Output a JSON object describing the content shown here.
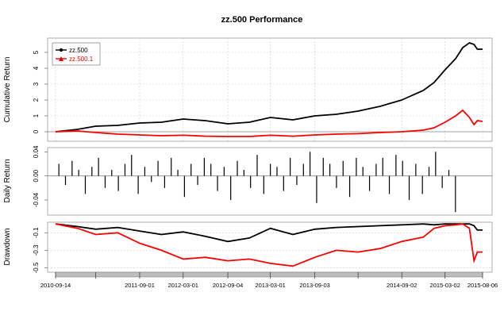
{
  "chart_data": {
    "type": "line",
    "title": "zz.500 Performance",
    "colors": {
      "zz.500": "#000000",
      "zz.500.1": "#ff0000",
      "grid": "#cfcfcf",
      "axis": "#555555",
      "bar": "#bdbdbd"
    },
    "x_axis": {
      "range": [
        "2010-09-14",
        "2015-08-06"
      ],
      "tick_labels": [
        "2010-09-14",
        "2011-09-01",
        "2012-03-01",
        "2012-09-04",
        "2013-03-01",
        "2013-09-03",
        "2014-09-02",
        "2015-03-02",
        "2015-08-06"
      ],
      "minor_ticks": [
        "2011-03-01",
        "2014-03-03"
      ]
    },
    "panels": [
      {
        "id": "cumulative",
        "ylabel": "Cumulative Return",
        "ylim": [
          -0.6,
          5.9
        ],
        "yticks": [
          "0",
          "1",
          "2",
          "3",
          "4",
          "5"
        ],
        "grid": true,
        "legend": {
          "position": "top-left",
          "entries": [
            "zz.500",
            "zz.500.1"
          ]
        },
        "series": [
          {
            "name": "zz.500",
            "marker": "circle",
            "x": [
              "2010-09-14",
              "2010-12-15",
              "2011-03-01",
              "2011-06-01",
              "2011-09-01",
              "2011-12-01",
              "2012-03-01",
              "2012-06-01",
              "2012-09-04",
              "2012-12-03",
              "2013-03-01",
              "2013-06-03",
              "2013-09-03",
              "2013-12-02",
              "2014-03-03",
              "2014-06-03",
              "2014-09-02",
              "2014-12-01",
              "2015-01-15",
              "2015-03-02",
              "2015-04-15",
              "2015-05-15",
              "2015-06-12",
              "2015-07-01",
              "2015-07-15",
              "2015-08-06"
            ],
            "y": [
              0.0,
              0.15,
              0.35,
              0.4,
              0.55,
              0.6,
              0.8,
              0.7,
              0.5,
              0.6,
              0.9,
              0.75,
              1.0,
              1.1,
              1.3,
              1.6,
              2.0,
              2.6,
              3.1,
              3.9,
              4.6,
              5.3,
              5.6,
              5.5,
              5.2,
              5.2
            ]
          },
          {
            "name": "zz.500.1",
            "marker": "triangle",
            "x": [
              "2010-09-14",
              "2010-12-15",
              "2011-03-01",
              "2011-06-01",
              "2011-09-01",
              "2011-12-01",
              "2012-03-01",
              "2012-06-01",
              "2012-09-04",
              "2012-12-03",
              "2013-03-01",
              "2013-06-03",
              "2013-09-03",
              "2013-12-02",
              "2014-03-03",
              "2014-06-03",
              "2014-09-02",
              "2014-12-01",
              "2015-01-15",
              "2015-03-02",
              "2015-04-15",
              "2015-05-15",
              "2015-06-12",
              "2015-07-01",
              "2015-07-15",
              "2015-08-06"
            ],
            "y": [
              0.0,
              0.05,
              -0.05,
              -0.15,
              -0.2,
              -0.25,
              -0.22,
              -0.28,
              -0.3,
              -0.3,
              -0.22,
              -0.28,
              -0.2,
              -0.15,
              -0.12,
              -0.05,
              0.0,
              0.1,
              0.25,
              0.6,
              1.0,
              1.35,
              0.9,
              0.45,
              0.7,
              0.65
            ]
          }
        ]
      },
      {
        "id": "daily",
        "ylabel": "Daily Return",
        "ylim": [
          -0.065,
          0.047
        ],
        "yticks": [
          "0.04",
          "0.00",
          "-0.04"
        ],
        "series_name": "zz.500",
        "values": [
          0.02,
          -0.015,
          0.025,
          0.01,
          -0.03,
          0.015,
          0.03,
          -0.02,
          0.01,
          -0.025,
          0.02,
          0.035,
          -0.03,
          0.015,
          -0.01,
          0.025,
          -0.02,
          0.03,
          0.01,
          -0.035,
          0.02,
          -0.015,
          0.03,
          0.02,
          -0.025,
          0.015,
          -0.04,
          0.025,
          0.01,
          -0.02,
          0.035,
          -0.03,
          0.02,
          0.015,
          -0.025,
          0.03,
          -0.015,
          0.02,
          0.04,
          -0.045,
          0.03,
          0.02,
          -0.02,
          0.025,
          -0.035,
          0.03,
          0.015,
          -0.025,
          0.02,
          0.03,
          -0.03,
          0.035,
          0.025,
          -0.04,
          0.02,
          -0.03,
          0.015,
          0.04,
          -0.02,
          0.01,
          -0.06
        ]
      },
      {
        "id": "drawdown",
        "ylabel": "Drawdown",
        "ylim": [
          -0.55,
          0.02
        ],
        "yticks": [
          "-0.1",
          "-0.3",
          "-0.5"
        ],
        "series": [
          {
            "name": "zz.500",
            "x": [
              "2010-09-14",
              "2010-12-15",
              "2011-03-01",
              "2011-06-01",
              "2011-09-01",
              "2011-12-01",
              "2012-03-01",
              "2012-06-01",
              "2012-09-04",
              "2012-12-03",
              "2013-03-01",
              "2013-06-03",
              "2013-09-03",
              "2013-12-02",
              "2014-03-03",
              "2014-06-03",
              "2014-09-02",
              "2014-12-01",
              "2015-01-15",
              "2015-03-02",
              "2015-04-15",
              "2015-05-15",
              "2015-06-12",
              "2015-07-01",
              "2015-07-15",
              "2015-08-06"
            ],
            "y": [
              0.0,
              -0.03,
              -0.06,
              -0.04,
              -0.08,
              -0.12,
              -0.09,
              -0.14,
              -0.2,
              -0.16,
              -0.05,
              -0.12,
              -0.06,
              -0.04,
              -0.03,
              -0.02,
              -0.01,
              0.0,
              -0.01,
              0.0,
              0.0,
              0.0,
              0.0,
              -0.02,
              -0.07,
              -0.07
            ]
          },
          {
            "name": "zz.500.1",
            "x": [
              "2010-09-14",
              "2010-12-15",
              "2011-03-01",
              "2011-06-01",
              "2011-09-01",
              "2011-12-01",
              "2012-03-01",
              "2012-06-01",
              "2012-09-04",
              "2012-12-03",
              "2013-03-01",
              "2013-06-03",
              "2013-09-03",
              "2013-12-02",
              "2014-03-03",
              "2014-06-03",
              "2014-09-02",
              "2014-12-01",
              "2015-01-15",
              "2015-03-02",
              "2015-04-15",
              "2015-05-15",
              "2015-06-12",
              "2015-07-01",
              "2015-07-15",
              "2015-08-06"
            ],
            "y": [
              0.0,
              -0.05,
              -0.12,
              -0.1,
              -0.22,
              -0.3,
              -0.4,
              -0.38,
              -0.42,
              -0.4,
              -0.45,
              -0.48,
              -0.38,
              -0.3,
              -0.32,
              -0.28,
              -0.2,
              -0.15,
              -0.05,
              -0.02,
              -0.01,
              0.0,
              -0.05,
              -0.42,
              -0.32,
              -0.32
            ]
          }
        ]
      }
    ]
  }
}
